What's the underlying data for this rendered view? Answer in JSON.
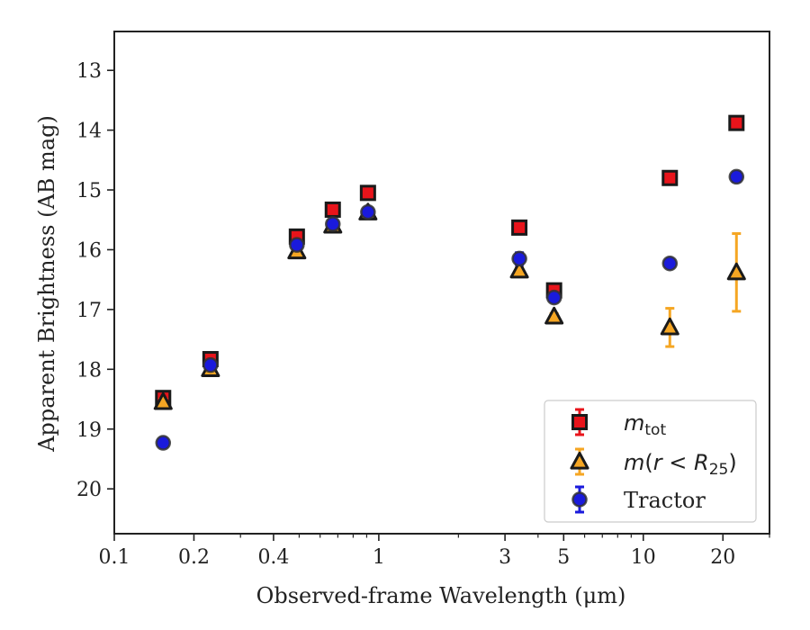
{
  "chart_data": {
    "type": "scatter",
    "xlabel": "Observed-frame Wavelength (μm)",
    "ylabel": "Apparent Brightness (AB mag)",
    "xscale": "log",
    "xlim": [
      0.1,
      30
    ],
    "ylim": [
      20.75,
      12.35
    ],
    "y_inverted": true,
    "x_ticks": [
      0.1,
      0.2,
      0.4,
      1,
      3,
      5,
      10,
      20
    ],
    "x_tick_labels": [
      "0.1",
      "0.2",
      "0.4",
      "1",
      "3",
      "5",
      "10",
      "20"
    ],
    "y_ticks": [
      13,
      14,
      15,
      16,
      17,
      18,
      19,
      20
    ],
    "y_tick_labels": [
      "13",
      "14",
      "15",
      "16",
      "17",
      "18",
      "19",
      "20"
    ],
    "grid": false,
    "legend_position": "bottom-right",
    "series": [
      {
        "name": "m_tot",
        "legend_label": "m_tot",
        "marker": "square",
        "color": "#e8141b",
        "edge_color": "#1a1a1a",
        "errbar_color": "#e8141b",
        "points": [
          {
            "x": 0.153,
            "y": 18.48,
            "err": 0.08
          },
          {
            "x": 0.231,
            "y": 17.83,
            "err": 0.05
          },
          {
            "x": 0.49,
            "y": 15.78,
            "err": 0.05
          },
          {
            "x": 0.67,
            "y": 15.33,
            "err": 0.05
          },
          {
            "x": 0.91,
            "y": 15.05,
            "err": 0.05
          },
          {
            "x": 3.4,
            "y": 15.63,
            "err": 0.05
          },
          {
            "x": 4.6,
            "y": 16.68,
            "err": 0.05
          },
          {
            "x": 12.6,
            "y": 14.8,
            "err": 0.05
          },
          {
            "x": 22.5,
            "y": 13.88,
            "err": 0.05
          }
        ]
      },
      {
        "name": "m(r<R25)",
        "legend_label": "m(r < R25)",
        "marker": "triangle",
        "color": "#f5a623",
        "edge_color": "#1a1a1a",
        "errbar_color": "#f5a623",
        "points": [
          {
            "x": 0.153,
            "y": 18.55,
            "err": 0.05
          },
          {
            "x": 0.231,
            "y": 18.0,
            "err": 0.05
          },
          {
            "x": 0.49,
            "y": 16.03,
            "err": 0.05
          },
          {
            "x": 0.67,
            "y": 15.6,
            "err": 0.05
          },
          {
            "x": 0.91,
            "y": 15.38,
            "err": 0.05
          },
          {
            "x": 3.4,
            "y": 16.35,
            "err": 0.05
          },
          {
            "x": 4.6,
            "y": 17.12,
            "err": 0.05
          },
          {
            "x": 12.6,
            "y": 17.3,
            "err": 0.32
          },
          {
            "x": 22.5,
            "y": 16.38,
            "err": 0.65
          }
        ]
      },
      {
        "name": "Tractor",
        "legend_label": "Tractor",
        "marker": "circle",
        "color": "#1a1adc",
        "edge_color": "#333333",
        "errbar_color": "#1a1adc",
        "points": [
          {
            "x": 0.153,
            "y": 19.23,
            "err": 0.05
          },
          {
            "x": 0.231,
            "y": 17.93,
            "err": 0.05
          },
          {
            "x": 0.49,
            "y": 15.92,
            "err": 0.05
          },
          {
            "x": 0.67,
            "y": 15.57,
            "err": 0.05
          },
          {
            "x": 0.91,
            "y": 15.37,
            "err": 0.05
          },
          {
            "x": 3.4,
            "y": 16.15,
            "err": 0.1
          },
          {
            "x": 4.6,
            "y": 16.8,
            "err": 0.05
          },
          {
            "x": 12.6,
            "y": 16.23,
            "err": 0.05
          },
          {
            "x": 22.5,
            "y": 14.78,
            "err": 0.08
          }
        ]
      }
    ]
  }
}
